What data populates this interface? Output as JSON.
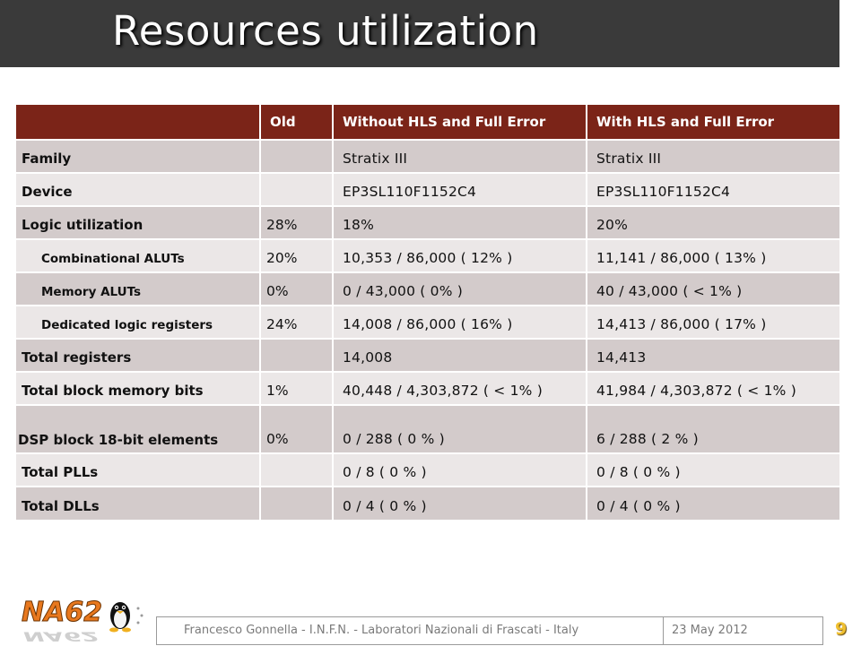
{
  "slide": {
    "title": "Resources utilization",
    "page_number": "9"
  },
  "table": {
    "headers": [
      "",
      "Old",
      "Without HLS and Full Error",
      "With HLS and Full Error"
    ],
    "rows": [
      {
        "label": "Family",
        "old": "",
        "without": "Stratix III",
        "with": "Stratix III"
      },
      {
        "label": "Device",
        "old": "",
        "without": "EP3SL110F1152C4",
        "with": "EP3SL110F1152C4"
      },
      {
        "label": "Logic utilization",
        "old": "28%",
        "without": "18%",
        "with": "20%"
      },
      {
        "label": "Combinational ALUTs",
        "old": "20%",
        "without": "10,353 / 86,000 ( 12% )",
        "with": "11,141 / 86,000 ( 13% )"
      },
      {
        "label": "Memory ALUTs",
        "old": "0%",
        "without": "0 / 43,000 ( 0% )",
        "with": "40 / 43,000 ( < 1% )"
      },
      {
        "label": "Dedicated logic registers",
        "old": "24%",
        "without": "14,008 / 86,000 ( 16% )",
        "with": "14,413 / 86,000 ( 17% )"
      },
      {
        "label": "Total registers",
        "old": "",
        "without": "14,008",
        "with": "14,413"
      },
      {
        "label": "Total block memory bits",
        "old": "1%",
        "without": "40,448 / 4,303,872 ( < 1% )",
        "with": "41,984 / 4,303,872 ( < 1% )"
      },
      {
        "label": " DSP block 18-bit elements",
        "old": "0%",
        "without": "0 / 288 ( 0 % )",
        "with": "6 / 288 ( 2 % )"
      },
      {
        "label": "Total PLLs",
        "old": "",
        "without": "0 / 8 ( 0 % )",
        "with": "0 / 8 ( 0 % )"
      },
      {
        "label": "Total DLLs",
        "old": "",
        "without": "0 / 4 ( 0 % )",
        "with": "0 / 4 ( 0 % )"
      }
    ]
  },
  "footer": {
    "author": "Francesco Gonnella - I.N.F.N. - Laboratori Nazionali di Frascati - Italy",
    "date": "23 May 2012"
  },
  "logo": {
    "text": "NA62"
  },
  "colors": {
    "title_bar": "#3a3a3a",
    "header_row": "#7b2418",
    "row_dark": "#d3cbcb",
    "row_light": "#ebe7e7",
    "logo_orange": "#e8781e",
    "page_number": "#f0c030"
  }
}
